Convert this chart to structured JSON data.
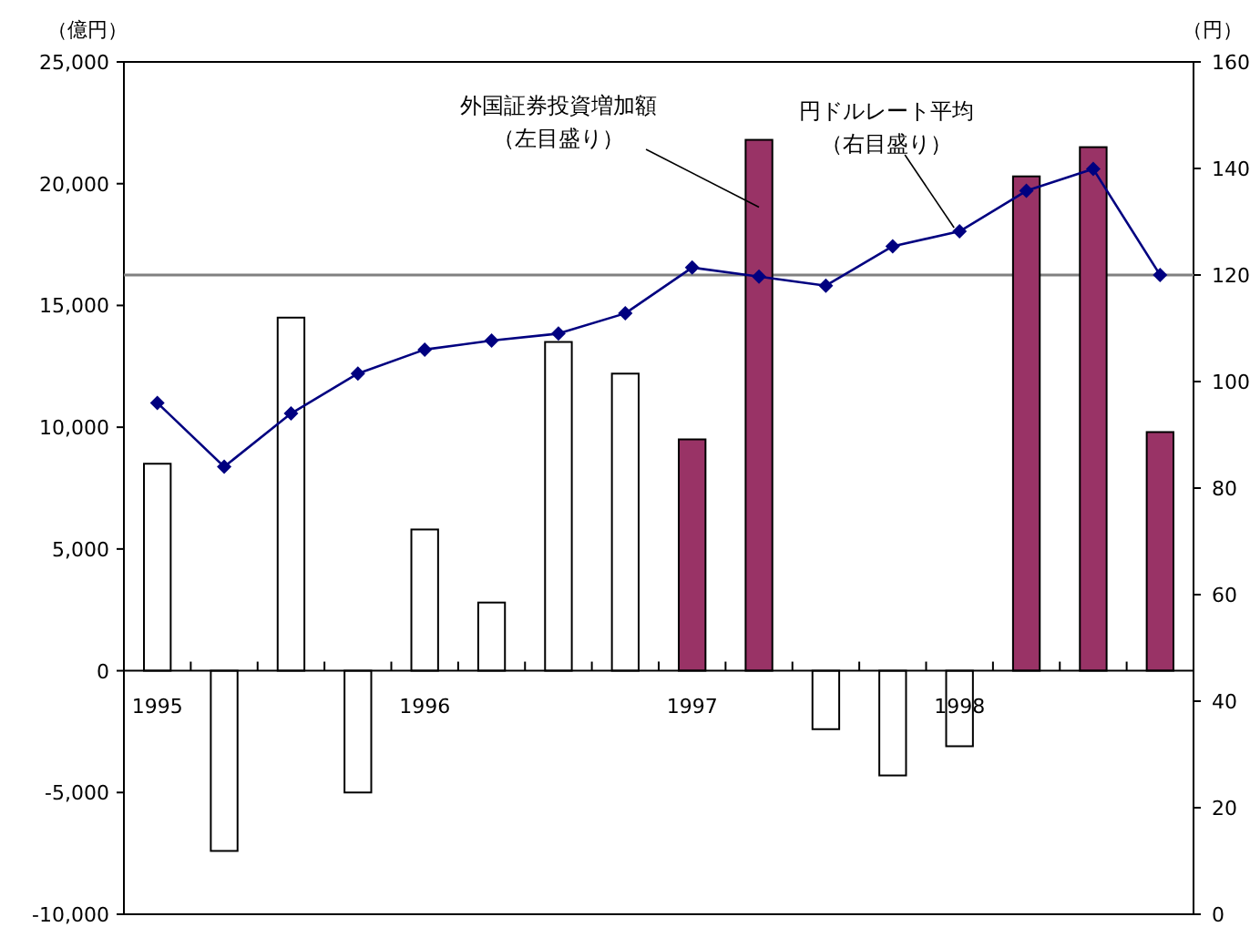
{
  "chart_data": {
    "type": "bar",
    "ylabel": "（億円）",
    "y2label": "（円）",
    "categories": [
      "1995",
      null,
      null,
      null,
      "1996",
      null,
      null,
      null,
      "1997",
      null,
      null,
      null,
      "1998",
      null,
      null,
      null
    ],
    "series": [
      {
        "name": "外国証券投資増加額（左目盛り）",
        "axis": "y",
        "values": [
          8500,
          -7400,
          14500,
          -5000,
          5800,
          2800,
          13500,
          12200,
          9500,
          21800,
          -2400,
          -4300,
          -3100,
          20300,
          21500,
          9800
        ],
        "colors": [
          "#ffffff",
          "#ffffff",
          "#ffffff",
          "#ffffff",
          "#ffffff",
          "#ffffff",
          "#ffffff",
          "#ffffff",
          "#993366",
          "#993366",
          "#ffffff",
          "#ffffff",
          "#ffffff",
          "#993366",
          "#993366",
          "#993366"
        ]
      },
      {
        "name": "円ドルレート平均（右目盛り）",
        "type": "line",
        "axis": "y2",
        "color": "#000080",
        "marker": "diamond",
        "values": [
          96,
          84,
          94,
          101.5,
          106,
          107.7,
          109,
          112.8,
          121.4,
          119.7,
          118,
          125.4,
          128.2,
          135.8,
          139.9,
          120
        ]
      }
    ],
    "ylim": [
      -10000,
      25000
    ],
    "yticks": [
      {
        "value": -10000,
        "label": "-10,000"
      },
      {
        "value": -5000,
        "label": "-5,000"
      },
      0,
      {
        "value": 5000,
        "label": "5,000"
      },
      {
        "value": 10000,
        "label": "10,000"
      },
      {
        "value": 15000,
        "label": "15,000"
      },
      {
        "value": 20000,
        "label": "20,000"
      },
      {
        "value": 25000,
        "label": "25,000"
      }
    ],
    "y2lim": [
      0,
      160
    ],
    "y2ticks": [
      0,
      20,
      40,
      60,
      80,
      100,
      120,
      140,
      160
    ],
    "ref_lines": [
      {
        "axis": "y2",
        "value": 120,
        "color": "#808080"
      }
    ],
    "grid": false
  }
}
